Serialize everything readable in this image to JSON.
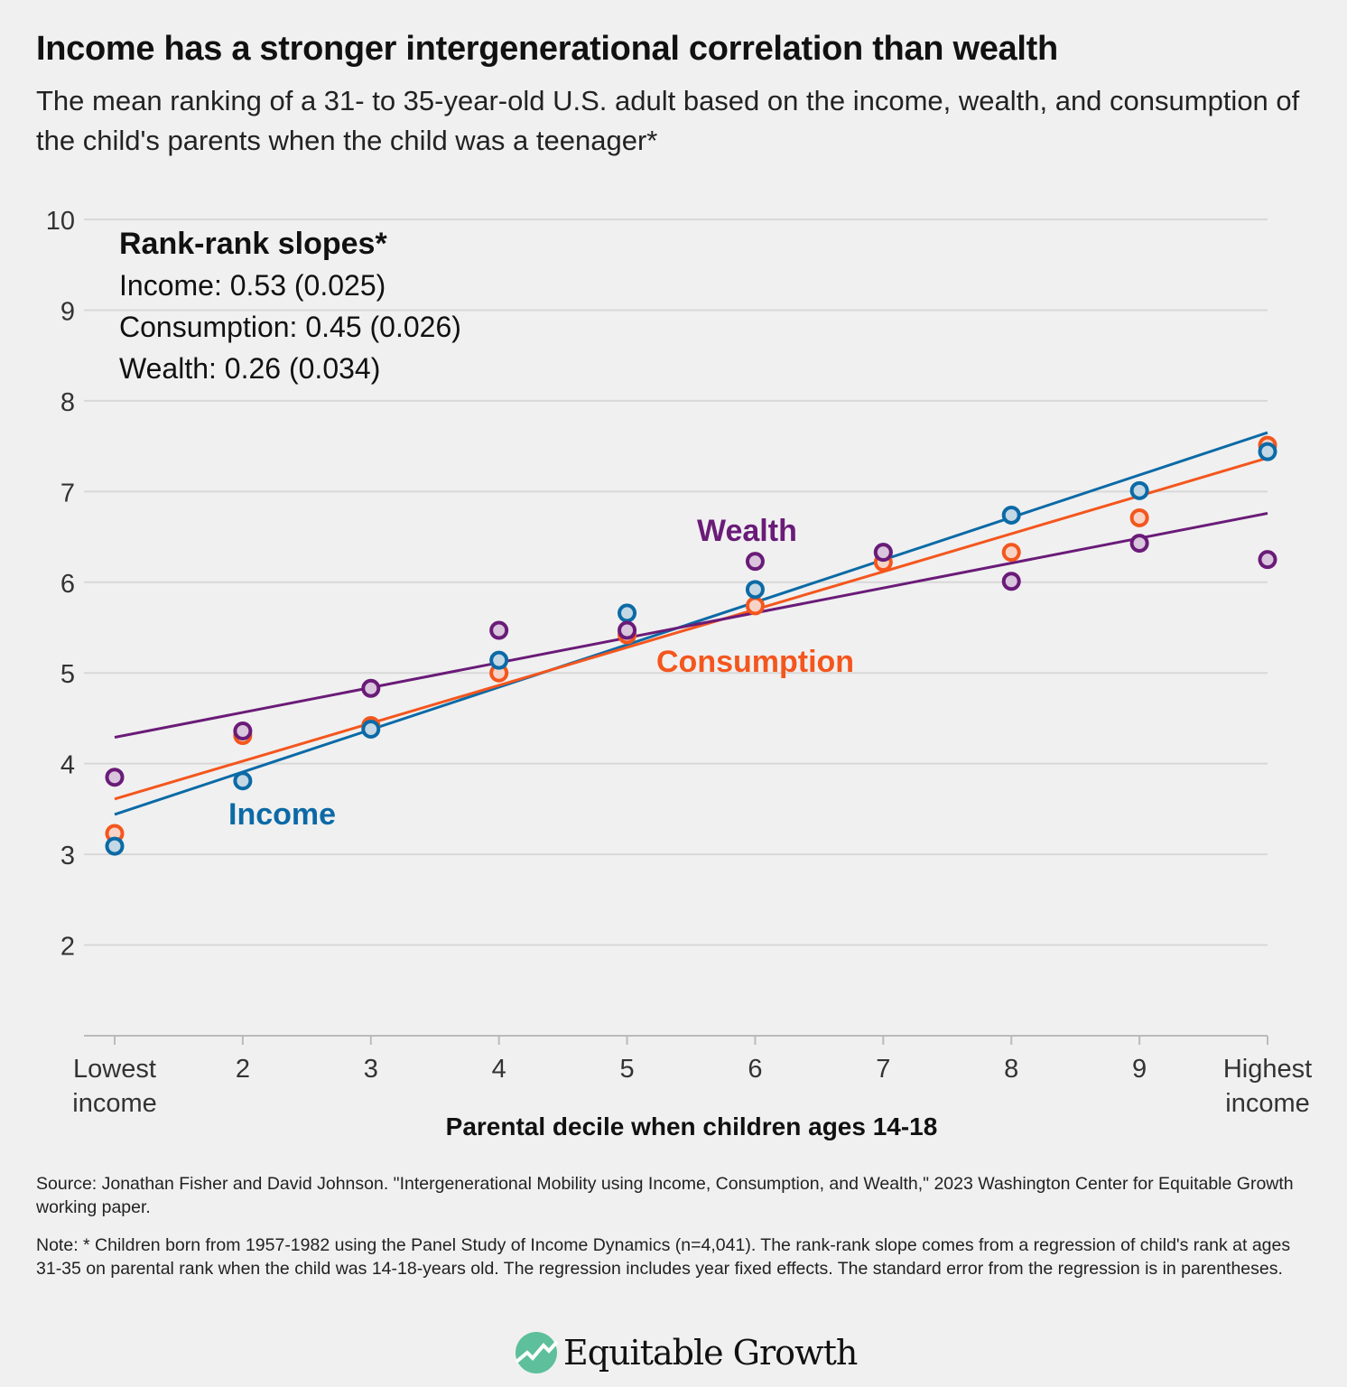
{
  "title": "Income has a stronger intergenerational correlation than wealth",
  "subtitle": "The mean ranking of a 31- to 35-year-old U.S. adult based on the income, wealth, and consumption of the child's parents when the child was a teenager*",
  "chart_data": {
    "type": "scatter",
    "xlabel": "Parental decile when children ages 14-18",
    "ylabel": "",
    "x": [
      1,
      2,
      3,
      4,
      5,
      6,
      7,
      8,
      9,
      10
    ],
    "x_tick_labels": [
      "Lowest income",
      "2",
      "3",
      "4",
      "5",
      "6",
      "7",
      "8",
      "9",
      "Highest income"
    ],
    "ylim": [
      1,
      10
    ],
    "y_ticks": [
      2,
      3,
      4,
      5,
      6,
      7,
      8,
      9,
      10
    ],
    "grid": true,
    "annotation": {
      "heading": "Rank-rank slopes*",
      "lines": [
        "Income: 0.53 (0.025)",
        "Consumption: 0.45 (0.026)",
        "Wealth: 0.26 (0.034)"
      ]
    },
    "series": [
      {
        "name": "Income",
        "color": "#0b6aa6",
        "values": [
          3.09,
          3.81,
          4.38,
          5.14,
          5.66,
          5.92,
          6.33,
          6.74,
          7.01,
          7.44
        ],
        "fit_line": [
          3.44,
          7.65
        ]
      },
      {
        "name": "Consumption",
        "color": "#f4561d",
        "values": [
          3.23,
          4.31,
          4.42,
          5.0,
          5.42,
          5.74,
          6.22,
          6.33,
          6.71,
          7.51
        ],
        "fit_line": [
          3.61,
          7.37
        ]
      },
      {
        "name": "Wealth",
        "color": "#6a1b78",
        "values": [
          3.85,
          4.36,
          4.83,
          5.47,
          5.47,
          6.23,
          6.33,
          6.01,
          6.43,
          6.25
        ],
        "fit_line": [
          4.29,
          6.76
        ]
      }
    ]
  },
  "source": "Source: Jonathan Fisher and David Johnson. \"Intergenerational Mobility using Income, Consumption, and Wealth,\" 2023 Washington Center for Equitable Growth working paper.",
  "note": "Note: * Children born from 1957-1982 using the Panel Study of Income Dynamics (n=4,041). The rank-rank slope comes from a regression of child's rank at ages 31-35 on parental rank when the child was 14-18-years old. The regression includes year fixed effects. The standard error from the regression is in parentheses.",
  "logo": {
    "text": "Equitable Growth",
    "color": "#5dbf9c"
  }
}
